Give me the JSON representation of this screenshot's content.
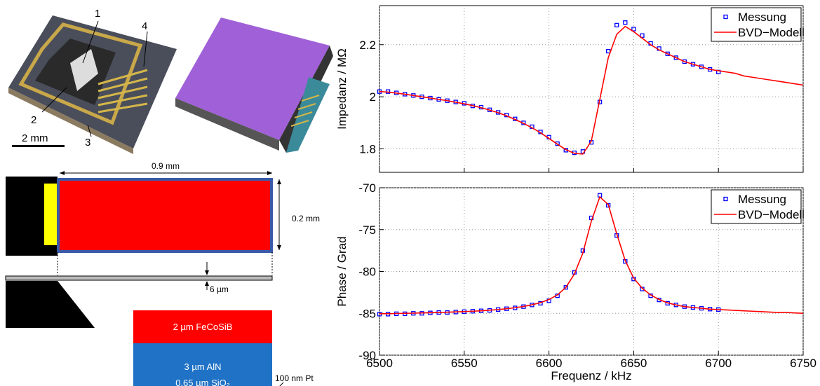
{
  "figure": {
    "photo_labels": [
      "1",
      "2",
      "3",
      "4"
    ],
    "scale_bar": "2 mm",
    "dimensions": {
      "length": "0.9 mm",
      "width": "0.2 mm",
      "thickness": "6 µm"
    },
    "layers": [
      "2 µm FeCoSiB",
      "3 µm AlN",
      "100 nm Pt",
      "0.65 µm SiO₂"
    ]
  },
  "chart_data": [
    {
      "type": "line",
      "ylabel": "Impedanz / MΩ",
      "xlim": [
        6500,
        6750
      ],
      "ylim": [
        1.71,
        2.35
      ],
      "xticks": [
        6500,
        6550,
        6600,
        6650,
        6700,
        6750
      ],
      "yticks": [
        1.8,
        2,
        2.2
      ],
      "show_xtick_labels": false,
      "grid": true,
      "legend": "northeast",
      "series": [
        {
          "name": "Messung",
          "marker": "square",
          "color": "#0000ff",
          "x": [
            6500,
            6505,
            6510,
            6515,
            6520,
            6525,
            6530,
            6535,
            6540,
            6545,
            6550,
            6555,
            6560,
            6565,
            6570,
            6575,
            6580,
            6585,
            6590,
            6595,
            6600,
            6605,
            6610,
            6615,
            6620,
            6625,
            6630,
            6635,
            6640,
            6645,
            6650,
            6655,
            6660,
            6665,
            6670,
            6675,
            6680,
            6685,
            6690,
            6695,
            6700
          ],
          "values": [
            2.02,
            2.02,
            2.015,
            2.01,
            2.005,
            2.0,
            1.995,
            1.99,
            1.985,
            1.98,
            1.975,
            1.965,
            1.96,
            1.95,
            1.94,
            1.93,
            1.915,
            1.9,
            1.885,
            1.865,
            1.845,
            1.82,
            1.795,
            1.785,
            1.79,
            1.825,
            1.98,
            2.175,
            2.275,
            2.285,
            2.26,
            2.235,
            2.205,
            2.185,
            2.165,
            2.15,
            2.135,
            2.125,
            2.115,
            2.105,
            2.095
          ]
        },
        {
          "name": "BVD−Modell",
          "marker": "line",
          "color": "#ff0000",
          "x": [
            6500,
            6505,
            6510,
            6515,
            6520,
            6525,
            6530,
            6535,
            6540,
            6545,
            6550,
            6555,
            6560,
            6565,
            6570,
            6575,
            6580,
            6585,
            6590,
            6595,
            6600,
            6605,
            6610,
            6615,
            6620,
            6625,
            6630,
            6635,
            6640,
            6645,
            6650,
            6655,
            6660,
            6665,
            6670,
            6675,
            6680,
            6685,
            6690,
            6695,
            6700,
            6705,
            6710,
            6715,
            6720,
            6725,
            6730,
            6735,
            6740,
            6745,
            6750
          ],
          "values": [
            2.02,
            2.018,
            2.014,
            2.01,
            2.005,
            2.0,
            1.995,
            1.99,
            1.985,
            1.979,
            1.973,
            1.966,
            1.958,
            1.949,
            1.939,
            1.927,
            1.913,
            1.898,
            1.881,
            1.862,
            1.84,
            1.818,
            1.797,
            1.783,
            1.78,
            1.83,
            1.99,
            2.15,
            2.24,
            2.27,
            2.25,
            2.225,
            2.2,
            2.18,
            2.165,
            2.15,
            2.135,
            2.125,
            2.115,
            2.105,
            2.1,
            2.095,
            2.09,
            2.08,
            2.075,
            2.07,
            2.065,
            2.06,
            2.055,
            2.05,
            2.045
          ]
        }
      ]
    },
    {
      "type": "line",
      "xlabel": "Frequenz / kHz",
      "ylabel": "Phase / Grad",
      "xlim": [
        6500,
        6750
      ],
      "ylim": [
        -90,
        -70
      ],
      "xticks": [
        6500,
        6550,
        6600,
        6650,
        6700,
        6750
      ],
      "yticks": [
        -90,
        -85,
        -80,
        -75,
        -70
      ],
      "show_xtick_labels": true,
      "grid": true,
      "legend": "northeast",
      "series": [
        {
          "name": "Messung",
          "marker": "square",
          "color": "#0000ff",
          "x": [
            6500,
            6505,
            6510,
            6515,
            6520,
            6525,
            6530,
            6535,
            6540,
            6545,
            6550,
            6555,
            6560,
            6565,
            6570,
            6575,
            6580,
            6585,
            6590,
            6595,
            6600,
            6605,
            6610,
            6615,
            6620,
            6625,
            6630,
            6635,
            6640,
            6645,
            6650,
            6655,
            6660,
            6665,
            6670,
            6675,
            6680,
            6685,
            6690,
            6695,
            6700
          ],
          "values": [
            -85.1,
            -85.1,
            -85.05,
            -85.05,
            -85.0,
            -85.0,
            -84.95,
            -84.9,
            -84.9,
            -84.85,
            -84.8,
            -84.75,
            -84.7,
            -84.65,
            -84.55,
            -84.45,
            -84.35,
            -84.2,
            -84.0,
            -83.8,
            -83.5,
            -82.9,
            -81.9,
            -80.1,
            -77.5,
            -73.6,
            -70.9,
            -72.1,
            -75.7,
            -78.8,
            -80.9,
            -82.1,
            -82.9,
            -83.4,
            -83.8,
            -84.0,
            -84.2,
            -84.3,
            -84.4,
            -84.5,
            -84.55
          ]
        },
        {
          "name": "BVD−Modell",
          "marker": "line",
          "color": "#ff0000",
          "x": [
            6500,
            6505,
            6510,
            6515,
            6520,
            6525,
            6530,
            6535,
            6540,
            6545,
            6550,
            6555,
            6560,
            6565,
            6570,
            6575,
            6580,
            6585,
            6590,
            6595,
            6600,
            6605,
            6610,
            6615,
            6620,
            6625,
            6630,
            6635,
            6640,
            6645,
            6650,
            6655,
            6660,
            6665,
            6670,
            6675,
            6680,
            6685,
            6690,
            6695,
            6700,
            6705,
            6710,
            6715,
            6720,
            6725,
            6730,
            6735,
            6740,
            6745,
            6750
          ],
          "values": [
            -85.05,
            -85.05,
            -85.02,
            -85.0,
            -84.98,
            -84.95,
            -84.92,
            -84.9,
            -84.87,
            -84.83,
            -84.8,
            -84.75,
            -84.7,
            -84.63,
            -84.55,
            -84.45,
            -84.33,
            -84.18,
            -83.98,
            -83.72,
            -83.35,
            -82.8,
            -81.9,
            -80.3,
            -77.8,
            -74.0,
            -71.1,
            -72.0,
            -75.5,
            -78.7,
            -80.8,
            -82.0,
            -82.8,
            -83.35,
            -83.75,
            -84.0,
            -84.2,
            -84.3,
            -84.4,
            -84.5,
            -84.55,
            -84.6,
            -84.65,
            -84.7,
            -84.75,
            -84.8,
            -84.85,
            -84.9,
            -84.9,
            -84.95,
            -85.0
          ]
        }
      ]
    }
  ]
}
